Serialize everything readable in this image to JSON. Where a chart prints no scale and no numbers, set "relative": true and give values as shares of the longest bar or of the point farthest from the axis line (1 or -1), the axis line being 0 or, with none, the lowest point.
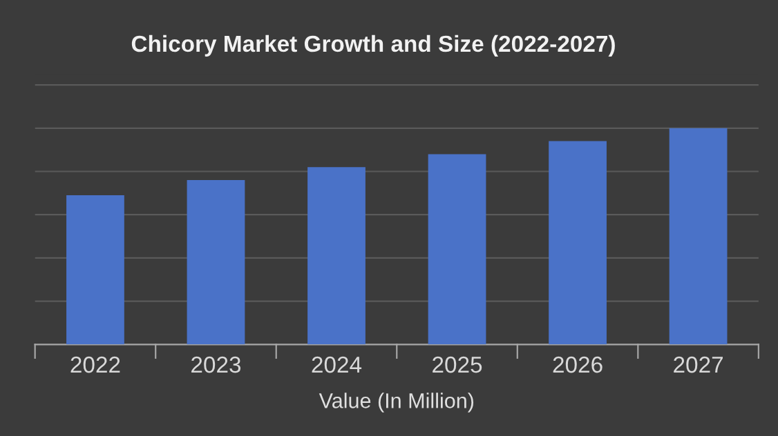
{
  "chart_data": {
    "type": "bar",
    "title": "Chicory Market Growth and Size (2022-2027)",
    "xlabel": "Value (In Million)",
    "categories": [
      "2022",
      "2023",
      "2024",
      "2025",
      "2026",
      "2027"
    ],
    "values": [
      0.69,
      0.76,
      0.82,
      0.88,
      0.94,
      1
    ],
    "color": "#4a72c8",
    "relative": true,
    "grid": "y",
    "legend": false
  }
}
